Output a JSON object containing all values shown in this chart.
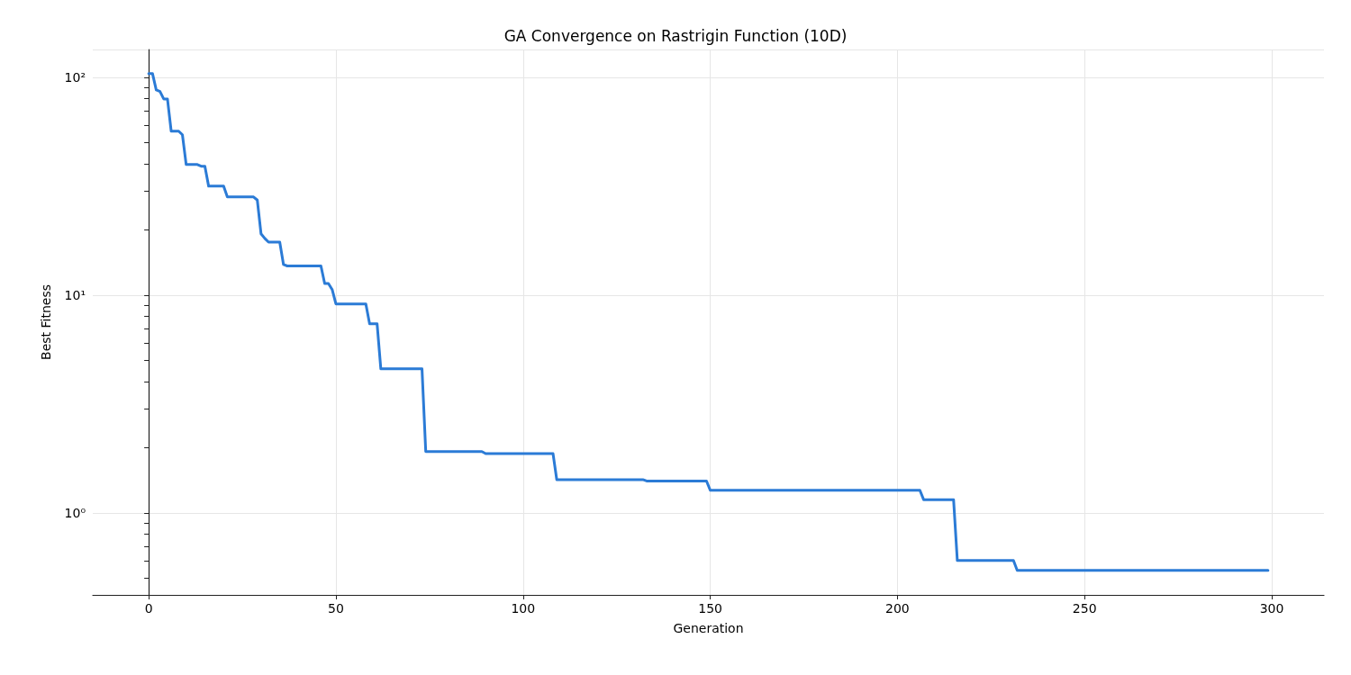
{
  "chart_data": {
    "type": "line",
    "title": "GA Convergence on Rastrigin Function (10D)",
    "xlabel": "Generation",
    "ylabel": "Best Fitness",
    "log": "y",
    "grid": true,
    "marker": "none",
    "line_style": "solid",
    "xlim": [
      -14.95,
      313.95
    ],
    "xticks": [
      0,
      50,
      100,
      150,
      200,
      250,
      300
    ],
    "ylim": [
      0.42,
      134
    ],
    "yticks": [
      {
        "value": 0.5,
        "label": null
      },
      {
        "value": 0.6,
        "label": null
      },
      {
        "value": 0.7,
        "label": null
      },
      {
        "value": 0.8,
        "label": null
      },
      {
        "value": 0.9,
        "label": null
      },
      {
        "value": 1,
        "label": "10⁰"
      },
      {
        "value": 2,
        "label": null
      },
      {
        "value": 3,
        "label": null
      },
      {
        "value": 4,
        "label": null
      },
      {
        "value": 5,
        "label": null
      },
      {
        "value": 6,
        "label": null
      },
      {
        "value": 7,
        "label": null
      },
      {
        "value": 8,
        "label": null
      },
      {
        "value": 9,
        "label": null
      },
      {
        "value": 10,
        "label": "10¹"
      },
      {
        "value": 20,
        "label": null
      },
      {
        "value": 30,
        "label": null
      },
      {
        "value": 40,
        "label": null
      },
      {
        "value": 50,
        "label": null
      },
      {
        "value": 60,
        "label": null
      },
      {
        "value": 70,
        "label": null
      },
      {
        "value": 80,
        "label": null
      },
      {
        "value": 90,
        "label": null
      },
      {
        "value": 100,
        "label": "10²"
      }
    ],
    "series": [
      {
        "color": "#2b7bd6",
        "x": [
          0,
          1,
          2,
          3,
          4,
          5,
          6,
          8,
          9,
          10,
          13,
          14,
          15,
          16,
          20,
          21,
          28,
          29,
          30,
          31,
          32,
          35,
          36,
          37,
          46,
          47,
          48,
          49,
          50,
          58,
          59,
          61,
          62,
          73,
          74,
          89,
          90,
          108,
          109,
          132,
          133,
          149,
          150,
          206,
          207,
          215,
          216,
          231,
          232,
          299
        ],
        "values": [
          104,
          104,
          87.5,
          86,
          79.5,
          79.5,
          56.5,
          56.5,
          54.4,
          39.7,
          39.7,
          39,
          39,
          31.6,
          31.6,
          28.2,
          28.2,
          27.3,
          19.1,
          18.2,
          17.5,
          17.5,
          13.8,
          13.6,
          13.6,
          11.3,
          11.3,
          10.6,
          9.1,
          9.1,
          7.38,
          7.38,
          4.58,
          4.58,
          1.91,
          1.91,
          1.87,
          1.87,
          1.42,
          1.42,
          1.4,
          1.4,
          1.27,
          1.27,
          1.15,
          1.15,
          0.604,
          0.604,
          0.544,
          0.544
        ]
      }
    ]
  }
}
